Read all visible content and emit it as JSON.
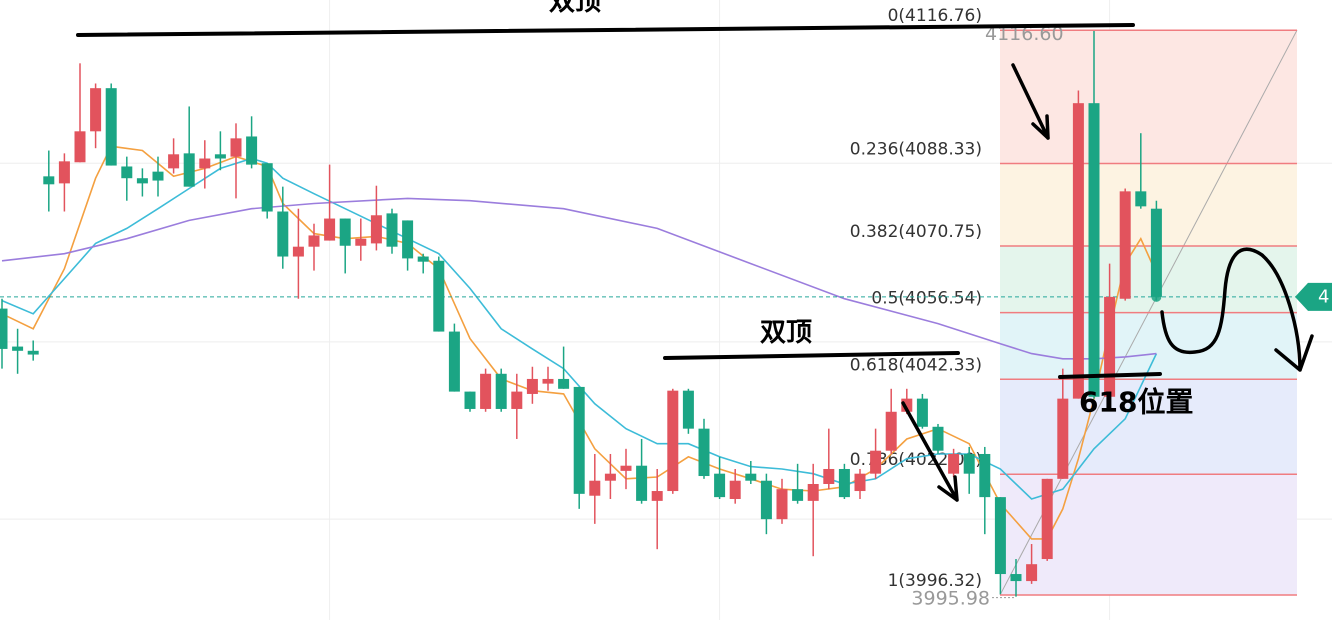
{
  "chart_data": {
    "type": "candlestick",
    "ylim": [
      3991.0,
      4123.2
    ],
    "up_color": "#e2535d",
    "down_color": "#1ba584",
    "open": [
      4057.4,
      4049.3,
      4048.4,
      4085.6,
      4084.1,
      4088.6,
      4095.2,
      4104.4,
      4087.7,
      4085.2,
      4086.6,
      4087.3,
      4090.5,
      4087.3,
      4090.3,
      4089.8,
      4094.1,
      4088.4,
      4078.1,
      4068.5,
      4070.6,
      4071.9,
      4076.6,
      4070.8,
      4071.3,
      4077.7,
      4076.2,
      4068.5,
      4067.6,
      4052.5,
      4039.7,
      4036.0,
      4043.5,
      4036.0,
      4039.2,
      4041.4,
      4042.4,
      4040.7,
      4017.5,
      4020.7,
      4022.8,
      4023.9,
      4016.4,
      4018.5,
      4039.9,
      4031.8,
      4022.2,
      4016.8,
      4022.2,
      4020.7,
      4012.5,
      4018.9,
      4016.4,
      4020.0,
      4023.2,
      4018.5,
      4022.2,
      4027.1,
      4035.4,
      4038.2,
      4032.2,
      4022.2,
      4026.4,
      4026.4,
      4017.2,
      4000.8,
      3999.3,
      4004.0,
      4021.1,
      4038.2,
      4101.2,
      4038.6,
      4059.5,
      4082.4,
      4078.7
    ],
    "high": [
      4059.5,
      4053.1,
      4050.6,
      4091.1,
      4090.5,
      4109.7,
      4105.4,
      4105.4,
      4089.8,
      4087.3,
      4089.8,
      4093.7,
      4100.5,
      4093.3,
      4095.2,
      4096.9,
      4098.4,
      4088.4,
      4083.4,
      4078.7,
      4075.5,
      4088.1,
      4076.6,
      4076.6,
      4083.6,
      4078.7,
      4076.2,
      4069.1,
      4068.5,
      4054.2,
      4039.7,
      4044.6,
      4044.6,
      4043.5,
      4045.0,
      4045.0,
      4049.3,
      4040.7,
      4026.4,
      4026.4,
      4027.5,
      4029.6,
      4023.2,
      4040.3,
      4040.3,
      4033.9,
      4025.8,
      4023.2,
      4024.9,
      4022.2,
      4021.1,
      4024.3,
      4024.3,
      4031.8,
      4024.3,
      4023.2,
      4031.8,
      4040.3,
      4040.3,
      4039.2,
      4032.8,
      4027.5,
      4027.9,
      4027.9,
      4017.2,
      4004.0,
      4007.2,
      4021.1,
      4044.6,
      4103.9,
      4116.6,
      4067.0,
      4083.0,
      4094.8,
      4080.4
    ],
    "low": [
      4044.6,
      4043.5,
      4046.3,
      4078.1,
      4078.1,
      4088.6,
      4091.6,
      4087.9,
      4080.4,
      4081.3,
      4081.3,
      4086.2,
      4083.4,
      4083.0,
      4086.9,
      4080.9,
      4087.3,
      4076.6,
      4065.9,
      4059.5,
      4065.5,
      4071.9,
      4064.9,
      4067.6,
      4069.8,
      4069.1,
      4065.5,
      4064.9,
      4052.5,
      4039.7,
      4035.4,
      4035.4,
      4035.4,
      4029.6,
      4037.1,
      4039.9,
      4040.3,
      4014.7,
      4011.5,
      4016.8,
      4018.9,
      4015.8,
      4006.1,
      4017.9,
      4030.7,
      4021.1,
      4016.8,
      4015.8,
      4020.0,
      4009.3,
      4011.5,
      4015.8,
      4004.6,
      4018.9,
      4016.8,
      4016.8,
      4021.1,
      4026.4,
      4034.9,
      4031.8,
      4026.4,
      4021.5,
      4017.9,
      4009.3,
      3996.5,
      3995.98,
      3998.7,
      4003.6,
      4021.1,
      4038.2,
      4038.2,
      4037.8,
      4059.1,
      4078.7,
      4059.1
    ],
    "close": [
      4048.8,
      4048.4,
      4047.6,
      4083.9,
      4088.8,
      4095.2,
      4104.4,
      4087.9,
      4085.2,
      4084.1,
      4084.7,
      4090.3,
      4083.4,
      4089.4,
      4089.4,
      4093.7,
      4088.1,
      4078.1,
      4068.5,
      4070.6,
      4073.0,
      4076.6,
      4070.8,
      4072.3,
      4077.3,
      4070.6,
      4068.1,
      4067.4,
      4052.5,
      4039.7,
      4036.0,
      4043.5,
      4036.0,
      4039.7,
      4042.4,
      4042.4,
      4040.3,
      4017.9,
      4020.7,
      4022.2,
      4023.9,
      4016.4,
      4018.5,
      4039.9,
      4031.8,
      4021.7,
      4017.2,
      4020.7,
      4020.7,
      4012.5,
      4018.9,
      4016.4,
      4020.0,
      4023.2,
      4017.2,
      4022.2,
      4027.1,
      4035.4,
      4038.2,
      4032.2,
      4027.1,
      4026.4,
      4022.2,
      4017.2,
      4000.8,
      3999.3,
      4002.9,
      4021.1,
      4038.2,
      4101.2,
      4038.6,
      4059.9,
      4082.4,
      4079.2,
      4059.9
    ],
    "indicators": [
      {
        "color": "#f4a040",
        "index": [
          0,
          2,
          4,
          6,
          7,
          9,
          11,
          13,
          15,
          17,
          18,
          20,
          22,
          24,
          26,
          28,
          30,
          32,
          34,
          36,
          38,
          40,
          42,
          44,
          46,
          48,
          50,
          52,
          54,
          56,
          58,
          60,
          62,
          64,
          66,
          67,
          68,
          69,
          70,
          71,
          72,
          73,
          74
        ],
        "values": [
          4056.3,
          4053.1,
          4065.9,
          4085.2,
          4092.0,
          4091.1,
          4085.6,
          4087.3,
          4089.8,
          4087.7,
          4079.8,
          4073.4,
          4072.3,
          4072.8,
          4071.3,
          4065.9,
          4051.0,
          4042.4,
          4039.9,
          4039.2,
          4027.5,
          4021.1,
          4021.5,
          4025.8,
          4023.2,
          4021.1,
          4018.9,
          4018.5,
          4019.4,
          4023.2,
          4029.6,
          4031.8,
          4028.6,
          4015.8,
          4008.3,
          4008.3,
          4014.7,
          4025.4,
          4038.2,
          4053.1,
          4067.0,
          4072.3,
          4064.9
        ]
      },
      {
        "color": "#3dbcd8",
        "index": [
          0,
          2,
          4,
          6,
          8,
          10,
          12,
          14,
          16,
          17,
          18,
          20,
          22,
          24,
          26,
          28,
          30,
          32,
          34,
          36,
          38,
          40,
          42,
          44,
          46,
          48,
          50,
          52,
          54,
          56,
          58,
          60,
          62,
          64,
          66,
          68,
          69,
          70,
          72,
          74
        ],
        "values": [
          4059.1,
          4056.3,
          4063.8,
          4071.3,
          4074.5,
          4078.7,
          4083.0,
          4087.3,
          4089.4,
          4088.4,
          4085.2,
          4081.9,
          4078.7,
          4075.5,
          4072.3,
          4069.1,
          4061.7,
          4053.1,
          4048.8,
          4044.6,
          4037.1,
          4031.8,
          4028.6,
          4028.6,
          4025.8,
          4023.7,
          4023.2,
          4022.2,
          4020.0,
          4021.1,
          4025.4,
          4026.4,
          4026.4,
          4023.2,
          4016.8,
          4018.9,
          4023.2,
          4027.5,
          4033.9,
          4047.8
        ]
      },
      {
        "color": "#9b7ddd",
        "index": [
          0,
          4,
          8,
          12,
          16,
          20,
          26,
          30,
          36,
          42,
          48,
          54,
          60,
          64,
          66,
          68,
          70,
          72,
          74
        ],
        "values": [
          4067.6,
          4069.1,
          4072.3,
          4076.2,
          4078.7,
          4079.8,
          4080.9,
          4080.4,
          4078.7,
          4074.5,
          4067.0,
          4059.5,
          4054.2,
          4049.9,
          4047.8,
          4046.7,
          4046.7,
          4047.1,
          4047.8
        ]
      }
    ],
    "grid_y": [
      4088.4,
      4050.3,
      4012.5
    ],
    "grid_x_index": [
      21,
      46,
      71
    ],
    "fibonacci": {
      "line_color": "#f07c80",
      "levels": [
        {
          "value": 4116.76,
          "label": "0(4116.76)"
        },
        {
          "value": 4088.33,
          "label": "0.236(4088.33)"
        },
        {
          "value": 4070.75,
          "label": "0.382(4070.75)"
        },
        {
          "value": 4056.54,
          "label": "0.5(4056.54)"
        },
        {
          "value": 4042.33,
          "label": "0.618(4042.33)"
        },
        {
          "value": 4022.09,
          "label": "0.786(4022.09)"
        },
        {
          "value": 3996.32,
          "label": "1(3996.32)"
        }
      ],
      "band_colors": [
        "#fde7e3",
        "#fdf3e2",
        "#e4f5ec",
        "#e1f4f8",
        "#e6ebfb",
        "#efeafa"
      ]
    },
    "high_marker": {
      "value": 4116.6,
      "label": "4116.60"
    },
    "low_marker": {
      "value": 3995.98,
      "label": "3995.98"
    },
    "price_tag": "4",
    "price_line_color": "#26a69a",
    "annotations": [
      "双顶",
      "双顶",
      "618位置"
    ]
  }
}
